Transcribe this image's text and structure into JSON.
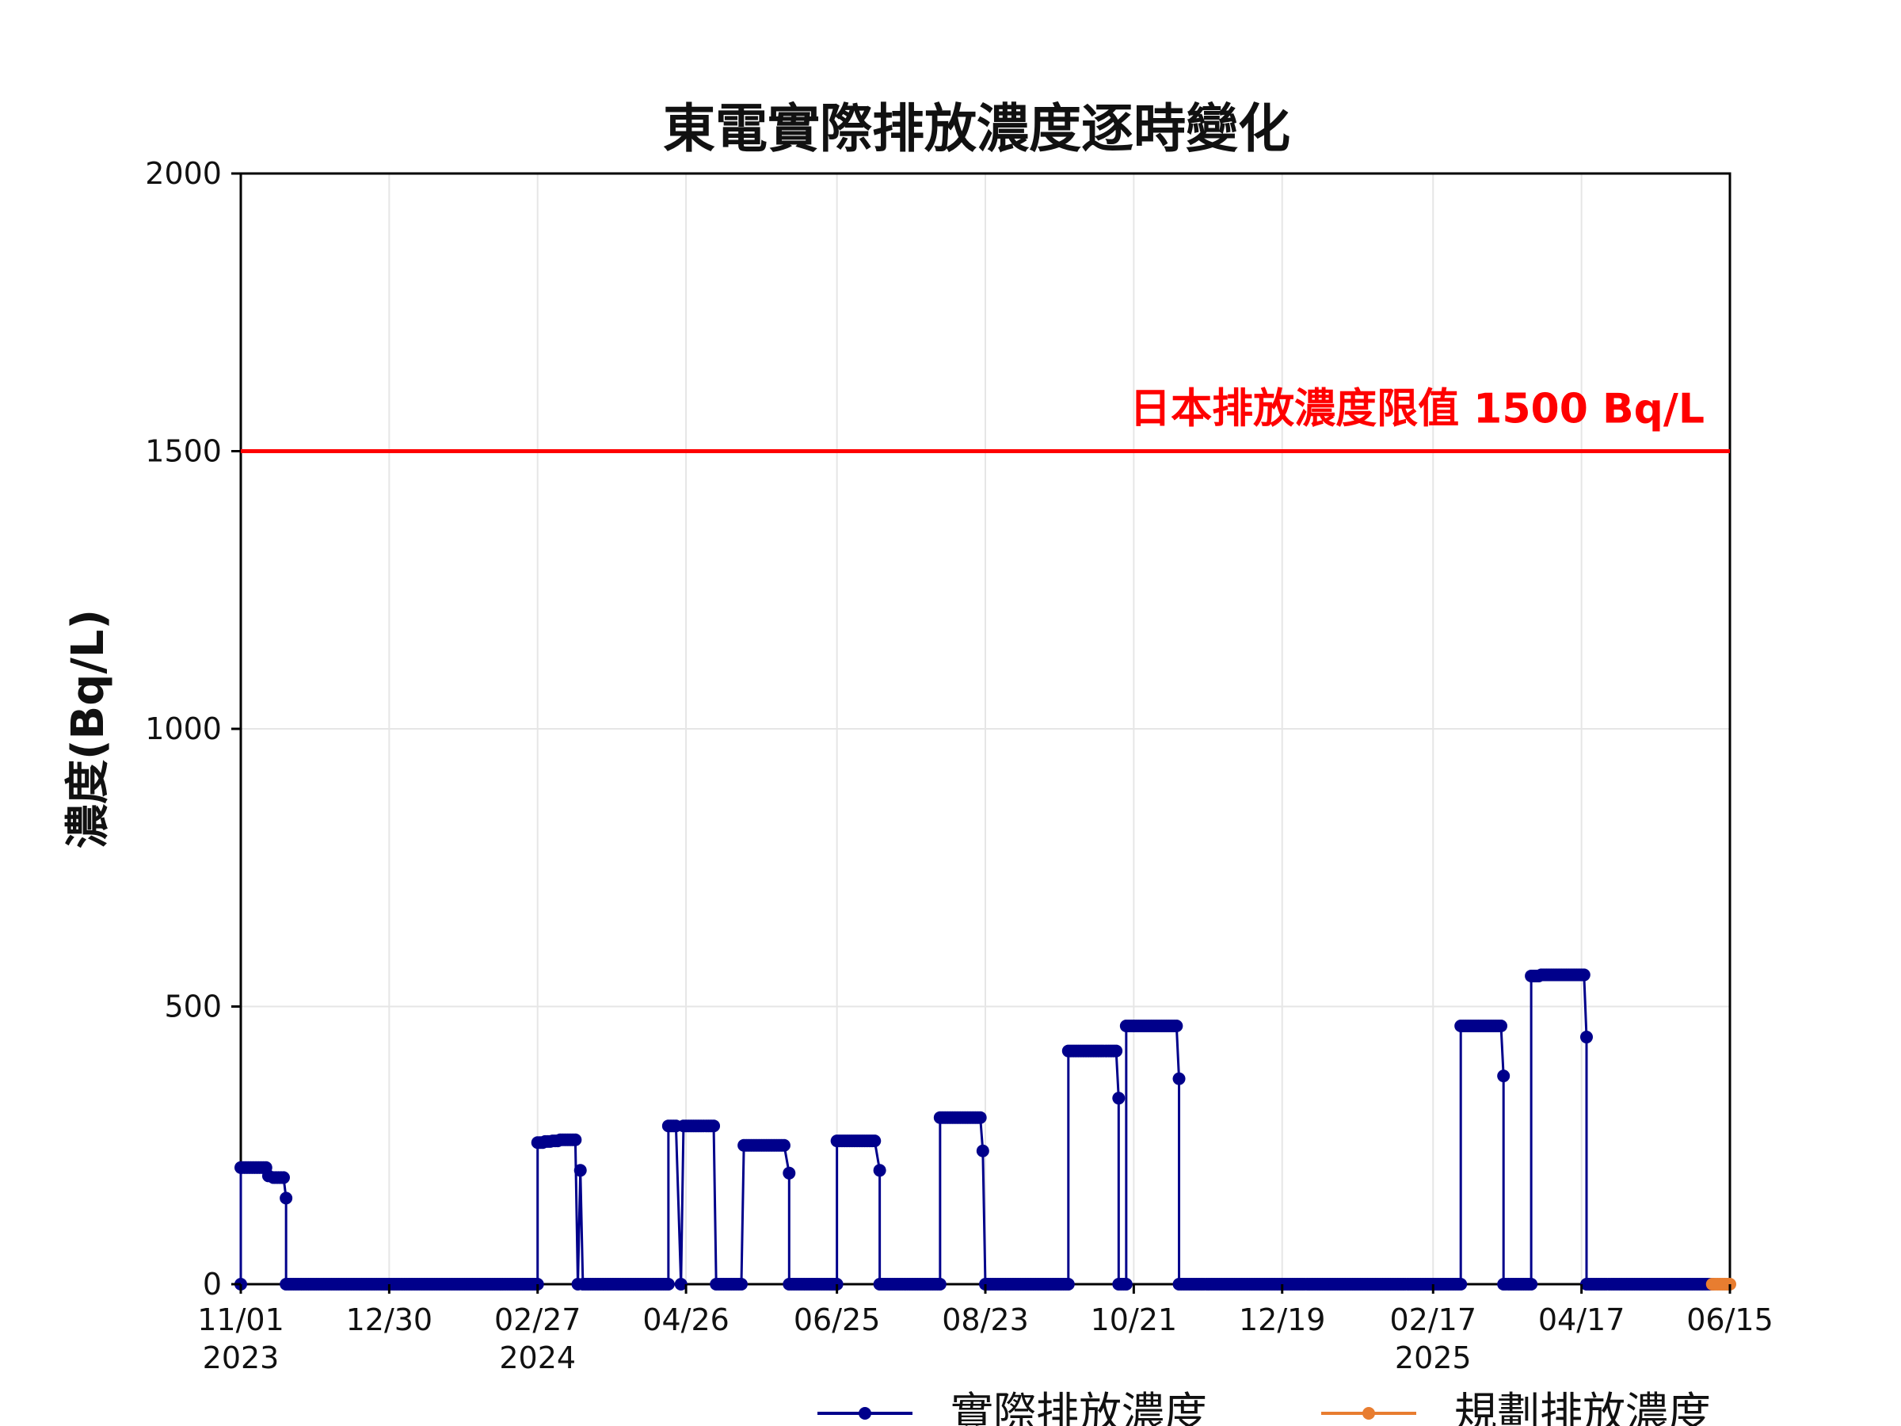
{
  "chart_data": {
    "type": "line",
    "title": "東電實際排放濃度逐時變化",
    "ylabel": "濃度(Bq/L)",
    "xlabel": "",
    "ylim": [
      0,
      2000
    ],
    "xlim": [
      "2023-11-01",
      "2025-06-15"
    ],
    "yticks": [
      0,
      500,
      1000,
      1500,
      2000
    ],
    "xticks": [
      {
        "date": "2023-11-01",
        "label": "11/01",
        "year": "2023"
      },
      {
        "date": "2023-12-30",
        "label": "12/30",
        "year": ""
      },
      {
        "date": "2024-02-27",
        "label": "02/27",
        "year": "2024"
      },
      {
        "date": "2024-04-26",
        "label": "04/26",
        "year": ""
      },
      {
        "date": "2024-06-25",
        "label": "06/25",
        "year": ""
      },
      {
        "date": "2024-08-23",
        "label": "08/23",
        "year": ""
      },
      {
        "date": "2024-10-21",
        "label": "10/21",
        "year": ""
      },
      {
        "date": "2024-12-19",
        "label": "12/19",
        "year": ""
      },
      {
        "date": "2025-02-17",
        "label": "02/17",
        "year": "2025"
      },
      {
        "date": "2025-04-17",
        "label": "04/17",
        "year": ""
      },
      {
        "date": "2025-06-15",
        "label": "06/15",
        "year": ""
      }
    ],
    "grid": true,
    "legend_position": "bottom",
    "limit_line": {
      "value": 1500,
      "label": "日本排放濃度限值 1500 Bq/L",
      "color": "#ff0000"
    },
    "series": [
      {
        "name": "實際排放濃度",
        "color": "#00008b",
        "points": [
          [
            "2023-11-01",
            0
          ],
          [
            "2023-11-01",
            210
          ],
          [
            "2023-11-03",
            210
          ],
          [
            "2023-11-05",
            210
          ],
          [
            "2023-11-07",
            210
          ],
          [
            "2023-11-09",
            210
          ],
          [
            "2023-11-11",
            210
          ],
          [
            "2023-11-12",
            195
          ],
          [
            "2023-11-14",
            192
          ],
          [
            "2023-11-16",
            192
          ],
          [
            "2023-11-18",
            192
          ],
          [
            "2023-11-19",
            155
          ],
          [
            "2023-11-19",
            0
          ],
          [
            "2023-12-15",
            0
          ],
          [
            "2024-01-15",
            0
          ],
          [
            "2024-02-15",
            0
          ],
          [
            "2024-02-27",
            0
          ],
          [
            "2024-02-27",
            255
          ],
          [
            "2024-03-01",
            257
          ],
          [
            "2024-03-04",
            258
          ],
          [
            "2024-03-07",
            260
          ],
          [
            "2024-03-10",
            260
          ],
          [
            "2024-03-13",
            260
          ],
          [
            "2024-03-14",
            0
          ],
          [
            "2024-03-15",
            205
          ],
          [
            "2024-03-16",
            0
          ],
          [
            "2024-04-01",
            0
          ],
          [
            "2024-04-19",
            0
          ],
          [
            "2024-04-19",
            285
          ],
          [
            "2024-04-22",
            285
          ],
          [
            "2024-04-24",
            0
          ],
          [
            "2024-04-25",
            285
          ],
          [
            "2024-04-28",
            285
          ],
          [
            "2024-05-01",
            285
          ],
          [
            "2024-05-04",
            285
          ],
          [
            "2024-05-07",
            285
          ],
          [
            "2024-05-08",
            0
          ],
          [
            "2024-05-15",
            0
          ],
          [
            "2024-05-18",
            0
          ],
          [
            "2024-05-19",
            250
          ],
          [
            "2024-05-23",
            250
          ],
          [
            "2024-05-27",
            250
          ],
          [
            "2024-05-31",
            250
          ],
          [
            "2024-06-04",
            250
          ],
          [
            "2024-06-06",
            200
          ],
          [
            "2024-06-06",
            0
          ],
          [
            "2024-06-15",
            0
          ],
          [
            "2024-06-25",
            0
          ],
          [
            "2024-06-25",
            258
          ],
          [
            "2024-06-28",
            258
          ],
          [
            "2024-07-01",
            258
          ],
          [
            "2024-07-04",
            258
          ],
          [
            "2024-07-07",
            258
          ],
          [
            "2024-07-10",
            258
          ],
          [
            "2024-07-12",
            205
          ],
          [
            "2024-07-12",
            0
          ],
          [
            "2024-07-22",
            0
          ],
          [
            "2024-08-05",
            0
          ],
          [
            "2024-08-05",
            300
          ],
          [
            "2024-08-09",
            300
          ],
          [
            "2024-08-13",
            300
          ],
          [
            "2024-08-17",
            300
          ],
          [
            "2024-08-21",
            300
          ],
          [
            "2024-08-22",
            240
          ],
          [
            "2024-08-23",
            0
          ],
          [
            "2024-09-10",
            0
          ],
          [
            "2024-09-25",
            0
          ],
          [
            "2024-09-25",
            420
          ],
          [
            "2024-09-29",
            420
          ],
          [
            "2024-10-03",
            420
          ],
          [
            "2024-10-07",
            420
          ],
          [
            "2024-10-11",
            420
          ],
          [
            "2024-10-14",
            420
          ],
          [
            "2024-10-15",
            335
          ],
          [
            "2024-10-15",
            0
          ],
          [
            "2024-10-18",
            0
          ],
          [
            "2024-10-18",
            465
          ],
          [
            "2024-10-22",
            465
          ],
          [
            "2024-10-26",
            465
          ],
          [
            "2024-10-30",
            465
          ],
          [
            "2024-11-03",
            465
          ],
          [
            "2024-11-07",
            465
          ],
          [
            "2024-11-08",
            370
          ],
          [
            "2024-11-08",
            0
          ],
          [
            "2024-12-01",
            0
          ],
          [
            "2025-01-01",
            0
          ],
          [
            "2025-02-01",
            0
          ],
          [
            "2025-02-28",
            0
          ],
          [
            "2025-02-28",
            465
          ],
          [
            "2025-03-04",
            465
          ],
          [
            "2025-03-08",
            465
          ],
          [
            "2025-03-12",
            465
          ],
          [
            "2025-03-16",
            465
          ],
          [
            "2025-03-17",
            375
          ],
          [
            "2025-03-17",
            0
          ],
          [
            "2025-03-28",
            0
          ],
          [
            "2025-03-28",
            555
          ],
          [
            "2025-04-01",
            557
          ],
          [
            "2025-04-05",
            557
          ],
          [
            "2025-04-09",
            557
          ],
          [
            "2025-04-13",
            557
          ],
          [
            "2025-04-18",
            557
          ],
          [
            "2025-04-19",
            445
          ],
          [
            "2025-04-19",
            0
          ],
          [
            "2025-05-10",
            0
          ],
          [
            "2025-06-08",
            0
          ]
        ]
      },
      {
        "name": "規劃排放濃度",
        "color": "#e87d30",
        "points": [
          [
            "2025-06-08",
            0
          ],
          [
            "2025-06-11",
            0
          ],
          [
            "2025-06-15",
            0
          ]
        ]
      }
    ]
  }
}
